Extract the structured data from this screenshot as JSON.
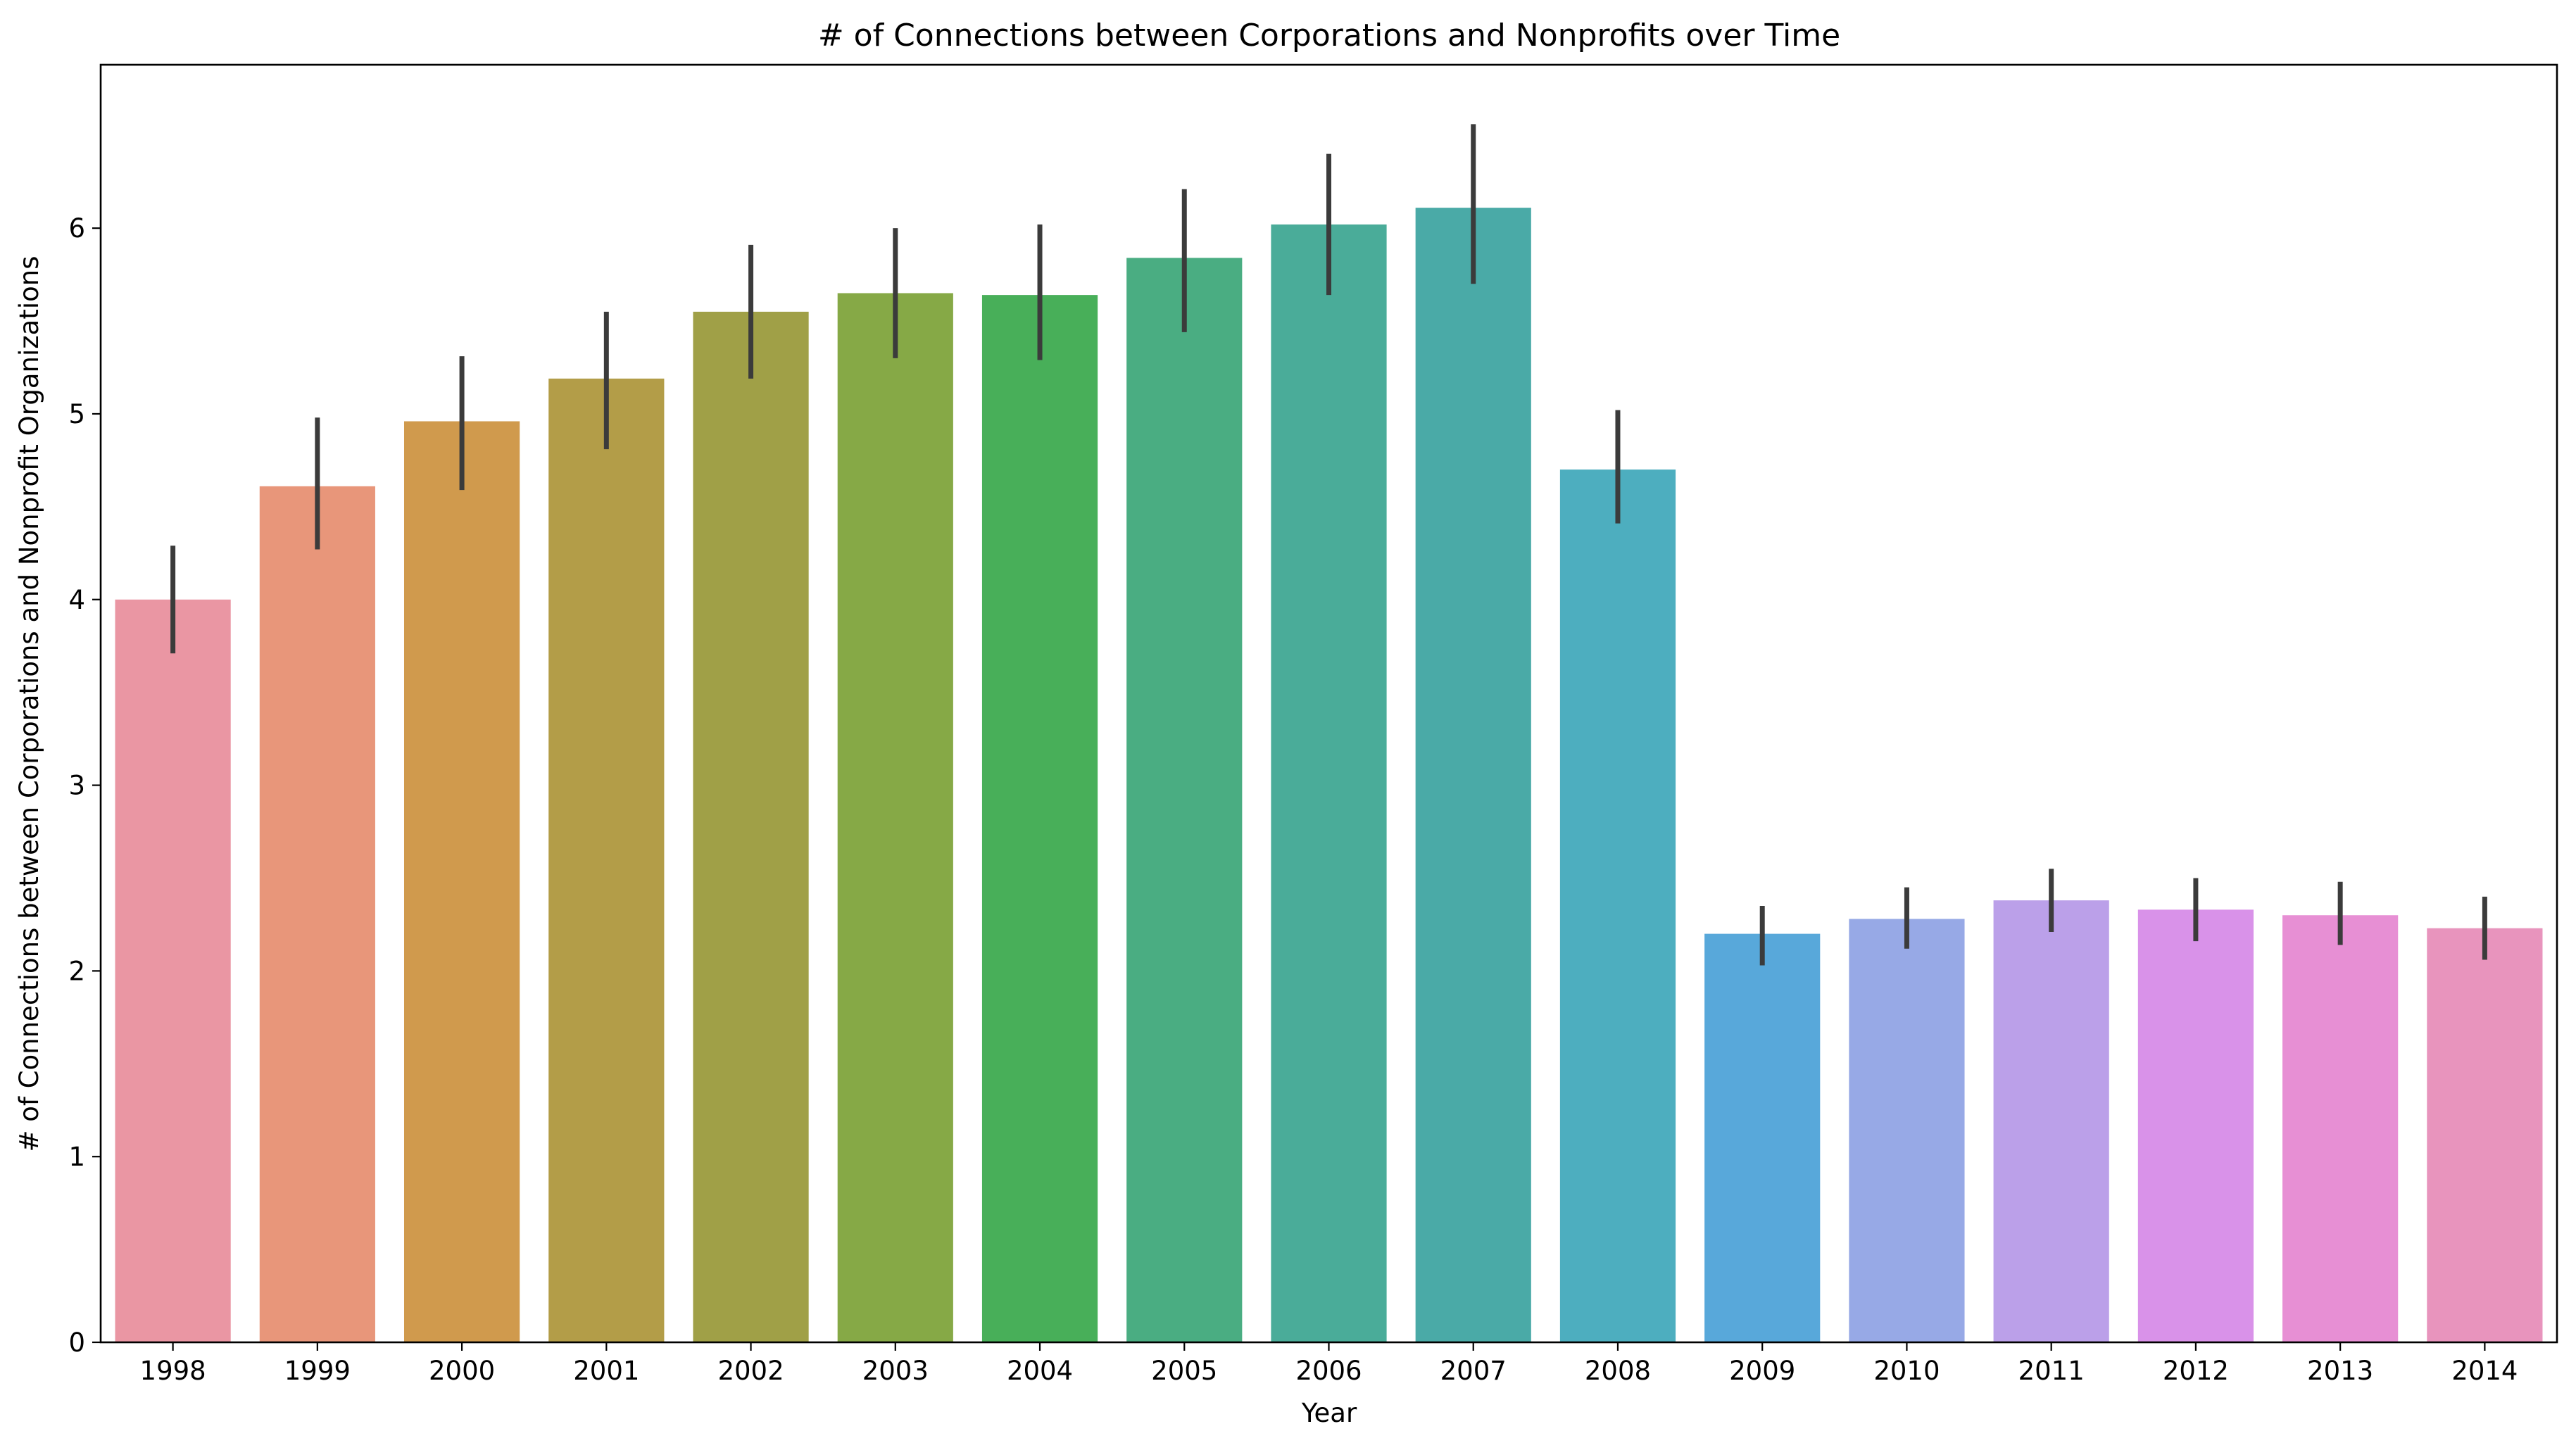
{
  "chart_data": {
    "type": "bar",
    "title": "# of Connections between Corporations and Nonprofits over Time",
    "xlabel": "Year",
    "ylabel": "# of Connections between Corporations and Nonprofit Organizations",
    "categories": [
      "1998",
      "1999",
      "2000",
      "2001",
      "2002",
      "2003",
      "2004",
      "2005",
      "2006",
      "2007",
      "2008",
      "2009",
      "2010",
      "2011",
      "2012",
      "2013",
      "2014"
    ],
    "values": [
      4.0,
      4.61,
      4.96,
      5.19,
      5.55,
      5.65,
      5.64,
      5.84,
      6.02,
      6.11,
      4.7,
      2.2,
      2.28,
      2.38,
      2.33,
      2.3,
      2.23
    ],
    "error_low": [
      3.71,
      4.27,
      4.59,
      4.81,
      5.19,
      5.3,
      5.29,
      5.44,
      5.64,
      5.7,
      4.41,
      2.03,
      2.12,
      2.21,
      2.16,
      2.14,
      2.06
    ],
    "error_high": [
      4.29,
      4.98,
      5.31,
      5.55,
      5.91,
      6.0,
      6.02,
      6.21,
      6.4,
      6.56,
      5.02,
      2.35,
      2.45,
      2.55,
      2.5,
      2.48,
      2.4
    ],
    "colors": [
      "#ea96a3",
      "#e8967a",
      "#d09a4d",
      "#b39d48",
      "#a0a047",
      "#86a946",
      "#48af59",
      "#4aad82",
      "#4aac99",
      "#4aaaa7",
      "#4daebf",
      "#58a8da",
      "#97a9e6",
      "#bba0e9",
      "#d992e9",
      "#e78fd4",
      "#e894bd"
    ],
    "error_color": "#3b3b3b",
    "ylim": [
      0,
      6.88
    ],
    "yticks": [
      "0",
      "1",
      "2",
      "3",
      "4",
      "5",
      "6"
    ],
    "grid": false,
    "legend": "none"
  }
}
